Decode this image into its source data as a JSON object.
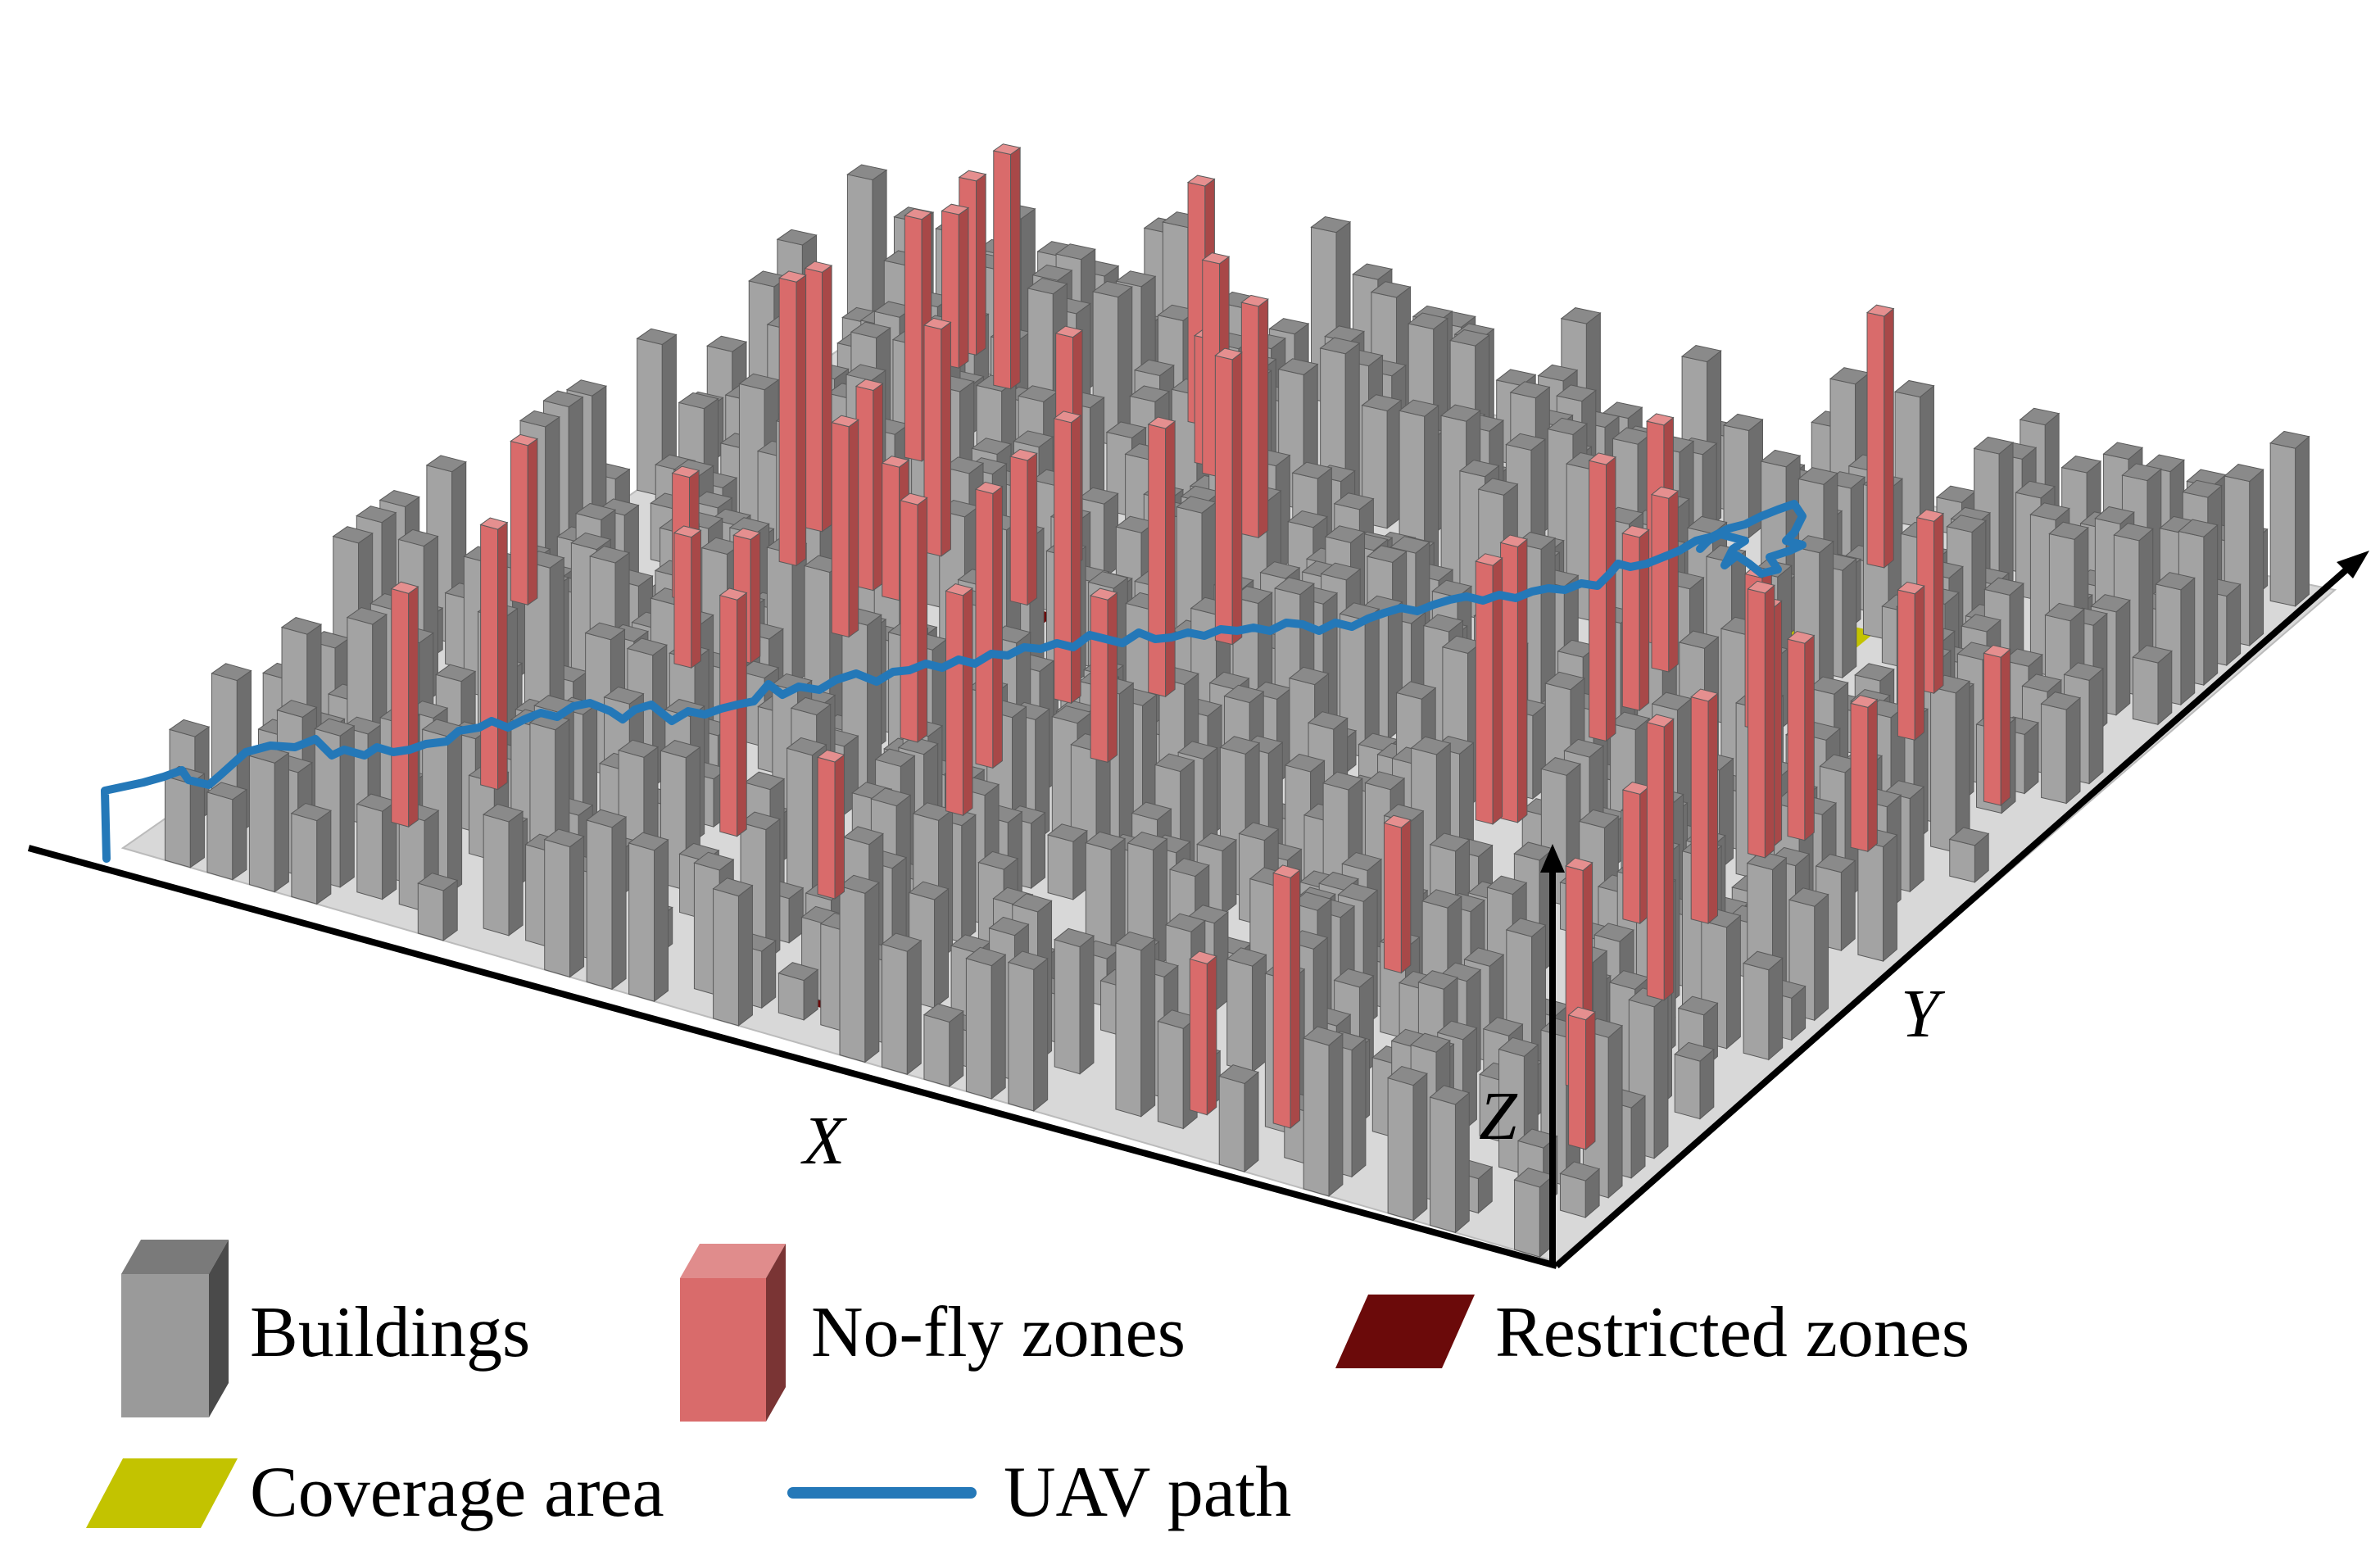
{
  "axes": {
    "x_label": "X",
    "y_label": "Y",
    "z_label": "Z"
  },
  "legend": {
    "buildings": {
      "label": "Buildings",
      "color": "#9a9a9a"
    },
    "no_fly": {
      "label": "No-fly zones",
      "color": "#d96b6b"
    },
    "restricted": {
      "label": "Restricted zones",
      "color": "#6b0a0a"
    },
    "coverage": {
      "label": "Coverage area",
      "color": "#c3c300"
    },
    "uav_path": {
      "label": "UAV path",
      "color": "#2478b8"
    }
  }
}
